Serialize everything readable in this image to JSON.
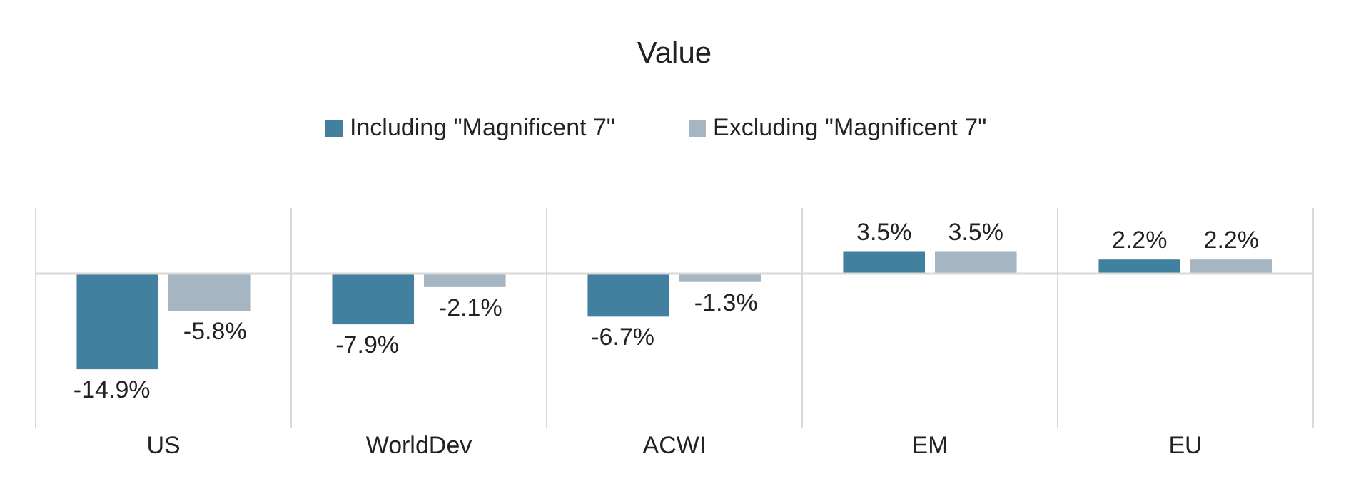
{
  "chart_data": {
    "type": "bar",
    "title": "Value",
    "categories": [
      "US",
      "WorldDev",
      "ACWI",
      "EM",
      "EU"
    ],
    "series": [
      {
        "name": "Including \"Magnificent 7\"",
        "color": "#41809e",
        "values": [
          -14.9,
          -7.9,
          -6.7,
          3.5,
          2.2
        ],
        "value_labels": [
          "-14.9%",
          "-7.9%",
          "-6.7%",
          "3.5%",
          "2.2%"
        ]
      },
      {
        "name": "Excluding \"Magnificent 7\"",
        "color": "#a5b5c1",
        "values": [
          -5.8,
          -2.1,
          -1.3,
          3.5,
          2.2
        ],
        "value_labels": [
          "-5.8%",
          "-2.1%",
          "-1.3%",
          "3.5%",
          "2.2%"
        ]
      }
    ],
    "legend": "top",
    "grid": "x"
  }
}
